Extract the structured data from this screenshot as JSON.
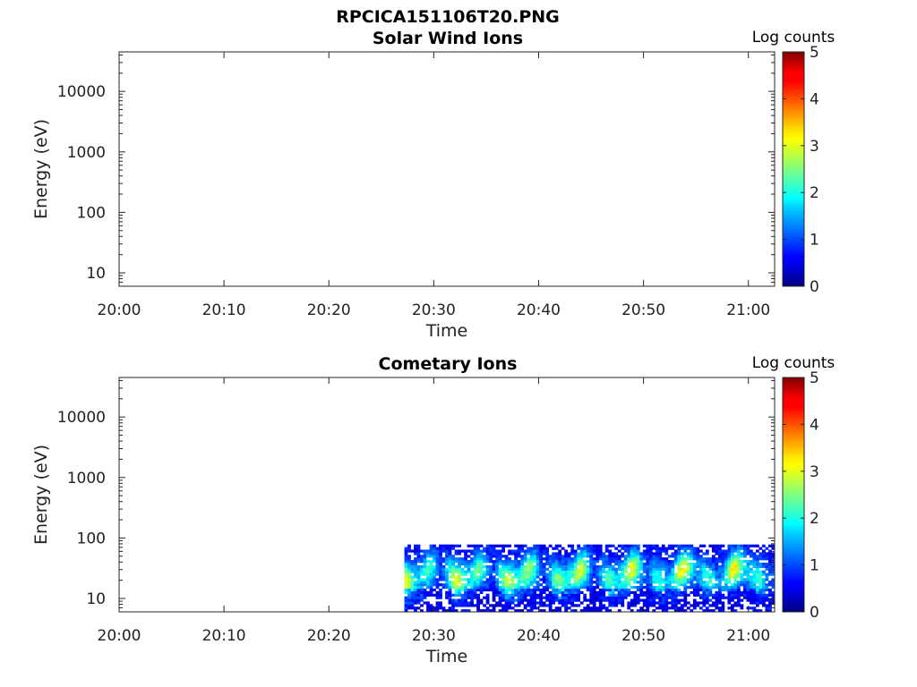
{
  "figure_title": "RPCICA151106T20.PNG",
  "chart_data": [
    {
      "type": "heatmap",
      "title": "Solar Wind Ions",
      "xlabel": "Time",
      "ylabel": "Energy (eV)",
      "x_tick_labels": [
        "20:00",
        "20:10",
        "20:20",
        "20:30",
        "20:40",
        "20:50",
        "21:00"
      ],
      "x_tick_minutes": [
        0,
        10,
        20,
        30,
        40,
        50,
        60
      ],
      "xlim_minutes": [
        0,
        62.5
      ],
      "y_scale": "log",
      "ylim": [
        6,
        45000
      ],
      "y_tick_labels": [
        "10",
        "100",
        "1000",
        "10000"
      ],
      "y_tick_values": [
        10,
        100,
        1000,
        10000
      ],
      "colorbar": {
        "title": "Log counts",
        "range": [
          0,
          5
        ],
        "tick_labels": [
          "0",
          "1",
          "2",
          "3",
          "4",
          "5"
        ],
        "colormap": "jet"
      },
      "data_present": false,
      "data_region": null
    },
    {
      "type": "heatmap",
      "title": "Cometary Ions",
      "xlabel": "Time",
      "ylabel": "Energy (eV)",
      "x_tick_labels": [
        "20:00",
        "20:10",
        "20:20",
        "20:30",
        "20:40",
        "20:50",
        "21:00"
      ],
      "x_tick_minutes": [
        0,
        10,
        20,
        30,
        40,
        50,
        60
      ],
      "xlim_minutes": [
        0,
        62.5
      ],
      "y_scale": "log",
      "ylim": [
        6,
        45000
      ],
      "y_tick_labels": [
        "10",
        "100",
        "1000",
        "10000"
      ],
      "y_tick_values": [
        10,
        100,
        1000,
        10000
      ],
      "colorbar": {
        "title": "Log counts",
        "range": [
          0,
          5
        ],
        "tick_labels": [
          "0",
          "1",
          "2",
          "3",
          "4",
          "5"
        ],
        "colormap": "jet"
      },
      "data_present": true,
      "data_region": {
        "time_start_minutes": 27.2,
        "time_end_minutes": 62.5,
        "energy_min_eV": 6,
        "energy_max_eV": 78,
        "peak_energy_eV": 25,
        "peak_log_counts": 2.6
      }
    }
  ]
}
